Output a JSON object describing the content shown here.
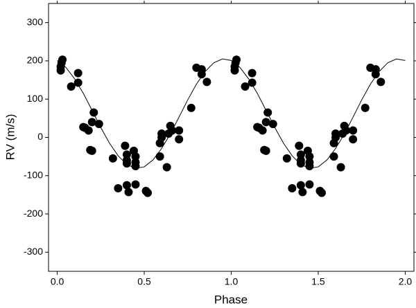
{
  "chart_data": {
    "type": "scatter",
    "xlabel": "Phase",
    "ylabel": "RV (m/s)",
    "xlim": [
      -0.05,
      2.05
    ],
    "ylim": [
      -350,
      350
    ],
    "xticks": [
      {
        "value": 0,
        "label": "0.0"
      },
      {
        "value": 0.5,
        "label": "0.5"
      },
      {
        "value": 1,
        "label": "1.0"
      },
      {
        "value": 1.5,
        "label": "1.5"
      },
      {
        "value": 2,
        "label": "2.0"
      }
    ],
    "yticks": [
      -300,
      -200,
      -100,
      0,
      100,
      200,
      300
    ],
    "series": [
      {
        "type": "scatter",
        "color": "#000000",
        "x": [
          0.02,
          0.02,
          0.025,
          0.03,
          0.08,
          0.12,
          0.12,
          0.15,
          0.16,
          0.18,
          0.19,
          0.2,
          0.2,
          0.21,
          0.24,
          0.32,
          0.35,
          0.39,
          0.4,
          0.4,
          0.4,
          0.4,
          0.41,
          0.44,
          0.45,
          0.45,
          0.45,
          0.45,
          0.51,
          0.52,
          0.59,
          0.59,
          0.6,
          0.6,
          0.63,
          0.64,
          0.65,
          0.66,
          0.7,
          0.7,
          0.77,
          0.8,
          0.83,
          0.83,
          0.86,
          1.02,
          1.02,
          1.025,
          1.03,
          1.08,
          1.12,
          1.12,
          1.15,
          1.16,
          1.18,
          1.19,
          1.2,
          1.2,
          1.21,
          1.24,
          1.32,
          1.35,
          1.39,
          1.4,
          1.4,
          1.4,
          1.4,
          1.41,
          1.44,
          1.45,
          1.45,
          1.45,
          1.45,
          1.51,
          1.52,
          1.59,
          1.59,
          1.6,
          1.6,
          1.63,
          1.64,
          1.65,
          1.66,
          1.7,
          1.7,
          1.77,
          1.8,
          1.83,
          1.83,
          1.86
        ],
        "values": [
          175,
          185,
          195,
          203,
          133,
          143,
          168,
          27,
          25,
          18,
          -33,
          -35,
          40,
          65,
          35,
          -55,
          -133,
          -22,
          -45,
          -60,
          -68,
          -125,
          -143,
          -35,
          -50,
          -65,
          -75,
          -123,
          -140,
          -145,
          -50,
          -15,
          0,
          10,
          -78,
          10,
          30,
          18,
          -5,
          18,
          77,
          182,
          165,
          178,
          145,
          175,
          185,
          195,
          203,
          133,
          143,
          168,
          27,
          25,
          18,
          -33,
          -35,
          40,
          65,
          35,
          -55,
          -133,
          -22,
          -45,
          -60,
          -68,
          -125,
          -143,
          -35,
          -50,
          -65,
          -75,
          -123,
          -140,
          -145,
          -50,
          -15,
          0,
          10,
          -78,
          10,
          30,
          18,
          -5,
          18,
          77,
          182,
          165,
          178,
          145
        ]
      },
      {
        "type": "line",
        "color": "#000000",
        "x": [
          0,
          0.05,
          0.1,
          0.15,
          0.2,
          0.25,
          0.3,
          0.35,
          0.4,
          0.45,
          0.5,
          0.55,
          0.6,
          0.65,
          0.7,
          0.75,
          0.8,
          0.85,
          0.9,
          0.95,
          1,
          1.05,
          1.1,
          1.15,
          1.2,
          1.25,
          1.3,
          1.35,
          1.4,
          1.45,
          1.5,
          1.55,
          1.6,
          1.65,
          1.7,
          1.75,
          1.8,
          1.85,
          1.9,
          1.95,
          2
        ],
        "values": [
          201,
          183,
          153,
          115,
          71,
          26,
          -15,
          -48,
          -71,
          -81,
          -77,
          -59,
          -29,
          9,
          53,
          98,
          139,
          172,
          195,
          205,
          201,
          183,
          153,
          115,
          71,
          26,
          -15,
          -48,
          -71,
          -81,
          -77,
          -59,
          -29,
          9,
          53,
          98,
          139,
          172,
          195,
          205,
          201
        ]
      }
    ]
  }
}
